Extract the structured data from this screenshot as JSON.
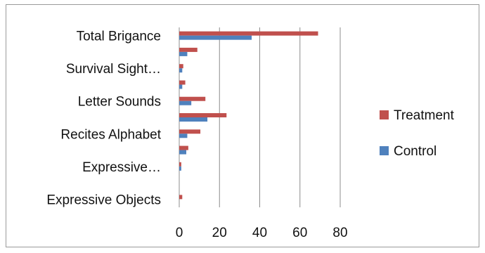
{
  "chart_data": {
    "type": "bar",
    "orientation": "horizontal",
    "categories": [
      "Total Brigance",
      "",
      "Survival Sight…",
      "",
      "Letter Sounds",
      "",
      "Recites Alphabet",
      "",
      "Expressive…",
      "",
      "Expressive Objects"
    ],
    "series": [
      {
        "name": "Treatment",
        "color": "#c0504d",
        "values": [
          69,
          9,
          2,
          3,
          13,
          23.5,
          10.5,
          4.5,
          1,
          0,
          1.5
        ]
      },
      {
        "name": "Control",
        "color": "#4f81bd",
        "values": [
          36,
          4,
          1.5,
          1.5,
          6,
          14,
          4,
          3.5,
          1,
          0,
          0
        ]
      }
    ],
    "xlim": [
      0,
      80
    ],
    "xticks": [
      "0",
      "20",
      "40",
      "60",
      "80"
    ],
    "grid": "vertical",
    "legend": "right"
  }
}
